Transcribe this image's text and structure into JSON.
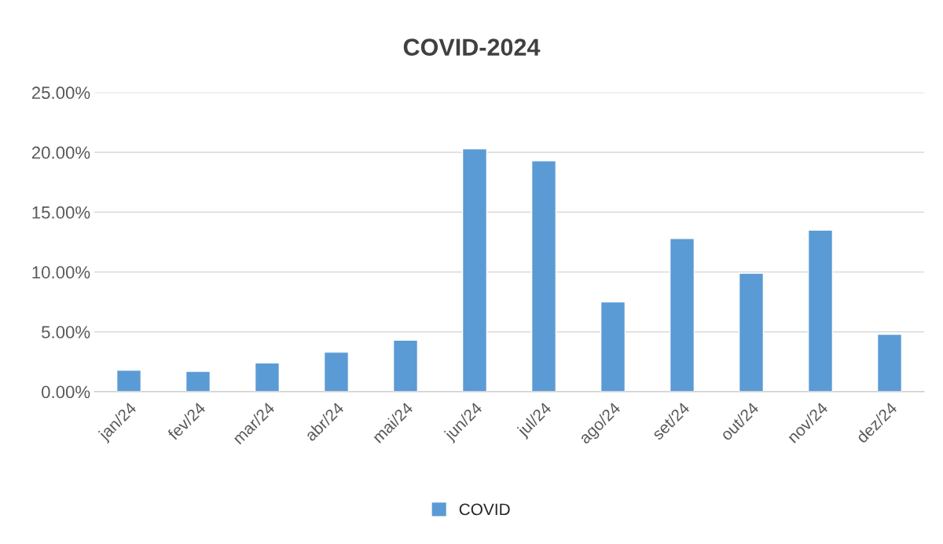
{
  "chart_data": {
    "type": "bar",
    "title": "COVID-2024",
    "categories": [
      "jan/24",
      "fev/24",
      "mar/24",
      "abr/24",
      "mai/24",
      "jun/24",
      "jul/24",
      "ago/24",
      "set/24",
      "out/24",
      "nov/24",
      "dez/24"
    ],
    "series": [
      {
        "name": "COVID",
        "color": "#5b9bd5",
        "values": [
          1.8,
          1.7,
          2.4,
          3.3,
          4.3,
          20.3,
          19.3,
          7.5,
          12.8,
          9.9,
          13.5,
          4.8
        ]
      }
    ],
    "ylim": [
      0,
      25
    ],
    "yticks": [
      {
        "value": 0,
        "label": "0.00%"
      },
      {
        "value": 5,
        "label": "5.00%"
      },
      {
        "value": 10,
        "label": "10.00%"
      },
      {
        "value": 15,
        "label": "15.00%"
      },
      {
        "value": 20,
        "label": "20.00%"
      },
      {
        "value": 25,
        "label": "25.00%"
      }
    ],
    "grid": "y",
    "legend": "bottom"
  }
}
